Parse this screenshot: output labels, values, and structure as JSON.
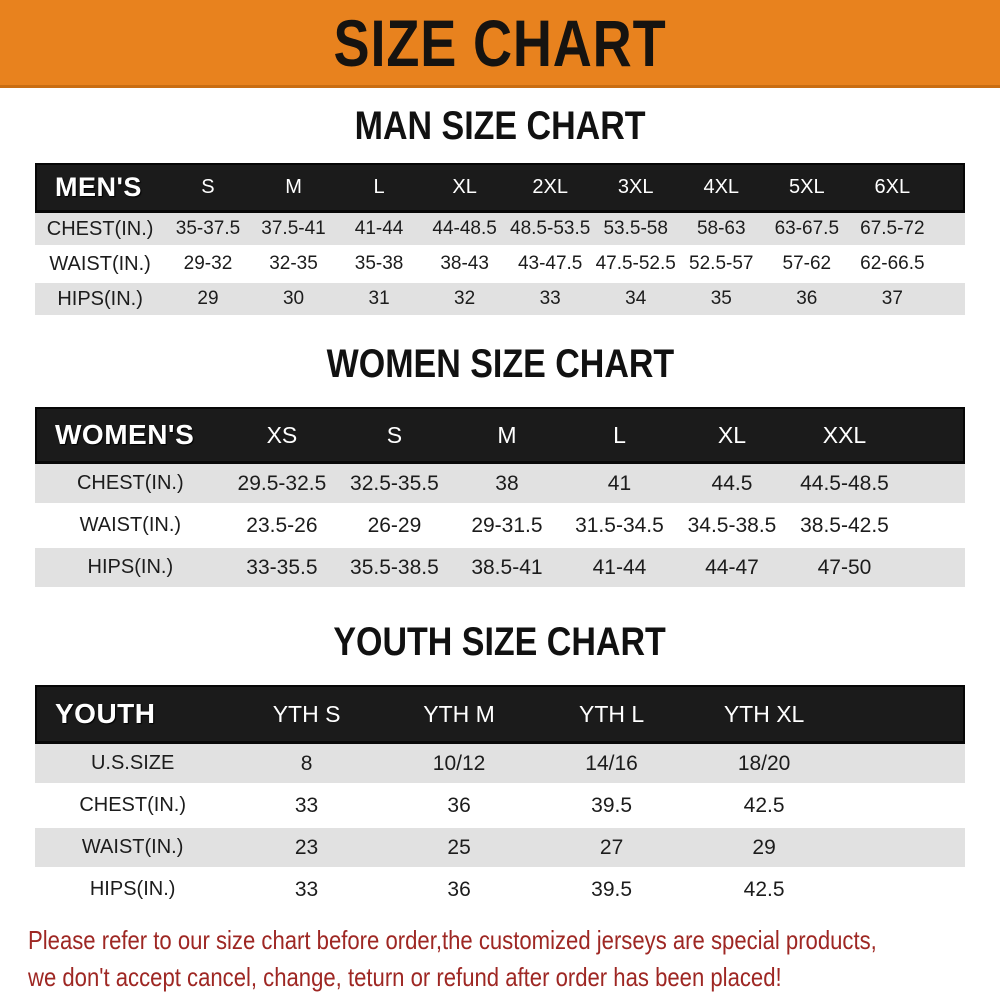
{
  "banner": {
    "title": "SIZE CHART"
  },
  "sections": [
    {
      "title": "MAN SIZE CHART",
      "header_label": "MEN'S",
      "columns": [
        "S",
        "M",
        "L",
        "XL",
        "2XL",
        "3XL",
        "4XL",
        "5XL",
        "6XL"
      ],
      "rows": [
        {
          "label": "CHEST(IN.)",
          "values": [
            "35-37.5",
            "37.5-41",
            "41-44",
            "44-48.5",
            "48.5-53.5",
            "53.5-58",
            "58-63",
            "63-67.5",
            "67.5-72"
          ]
        },
        {
          "label": "WAIST(IN.)",
          "values": [
            "29-32",
            "32-35",
            "35-38",
            "38-43",
            "43-47.5",
            "47.5-52.5",
            "52.5-57",
            "57-62",
            "62-66.5"
          ]
        },
        {
          "label": "HIPS(IN.)",
          "values": [
            "29",
            "30",
            "31",
            "32",
            "33",
            "34",
            "35",
            "36",
            "37"
          ]
        }
      ]
    },
    {
      "title": "WOMEN SIZE CHART",
      "header_label": "WOMEN'S",
      "columns": [
        "XS",
        "S",
        "M",
        "L",
        "XL",
        "XXL"
      ],
      "rows": [
        {
          "label": "CHEST(IN.)",
          "values": [
            "29.5-32.5",
            "32.5-35.5",
            "38",
            "41",
            "44.5",
            "44.5-48.5"
          ]
        },
        {
          "label": "WAIST(IN.)",
          "values": [
            "23.5-26",
            "26-29",
            "29-31.5",
            "31.5-34.5",
            "34.5-38.5",
            "38.5-42.5"
          ]
        },
        {
          "label": "HIPS(IN.)",
          "values": [
            "33-35.5",
            "35.5-38.5",
            "38.5-41",
            "41-44",
            "44-47",
            "47-50"
          ]
        }
      ]
    },
    {
      "title": "YOUTH SIZE CHART",
      "header_label": "YOUTH",
      "columns": [
        "YTH S",
        "YTH M",
        "YTH L",
        "YTH XL"
      ],
      "rows": [
        {
          "label": "U.S.SIZE",
          "values": [
            "8",
            "10/12",
            "14/16",
            "18/20"
          ]
        },
        {
          "label": "CHEST(IN.)",
          "values": [
            "33",
            "36",
            "39.5",
            "42.5"
          ]
        },
        {
          "label": "WAIST(IN.)",
          "values": [
            "23",
            "25",
            "27",
            "29"
          ]
        },
        {
          "label": "HIPS(IN.)",
          "values": [
            "33",
            "36",
            "39.5",
            "42.5"
          ]
        }
      ]
    }
  ],
  "footer": {
    "line1": "Please refer to our size chart before order,the customized jerseys are special products,",
    "line2": "we don't accept cancel, change, teturn or refund after order has been placed!"
  },
  "colors": {
    "banner_orange": "#e8821e",
    "header_black": "#1b1b1b",
    "row_shade_gray": "#e1e1e1",
    "footer_red": "#9e2723"
  }
}
